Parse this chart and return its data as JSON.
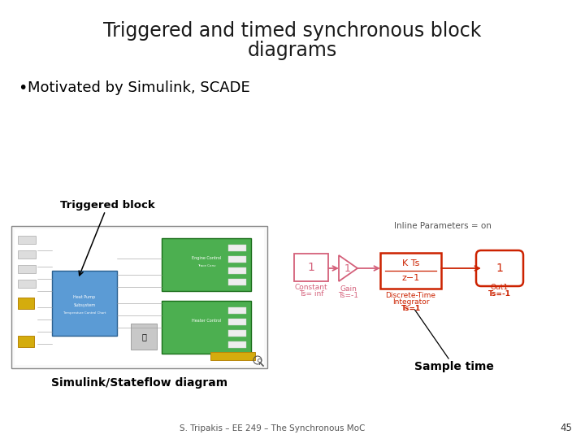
{
  "title_line1": "Triggered and timed synchronous block",
  "title_line2": "diagrams",
  "bullet": "Motivated by Simulink, SCADE",
  "label_triggered_block": "Triggered block",
  "label_simulink": "Simulink/Stateflow diagram",
  "label_inline": "Inline Parameters = on",
  "label_sample_time": "Sample time",
  "footer": "S. Tripakis – EE 249 – The Synchronous MoC",
  "page_num": "45",
  "bg_color": "#ffffff",
  "title_color": "#1a1a1a",
  "bullet_color": "#000000",
  "pink_color": "#d4607a",
  "red_color": "#cc2200",
  "gray_wire": "#999999",
  "blue_block": "#5b9bd5",
  "green_block": "#4caf50",
  "yellow_block": "#d4ac0d",
  "sim_border": "#888888",
  "sim_bg": "#f9f9f9",
  "footer_color": "#555555",
  "annotation_color": "#000000"
}
